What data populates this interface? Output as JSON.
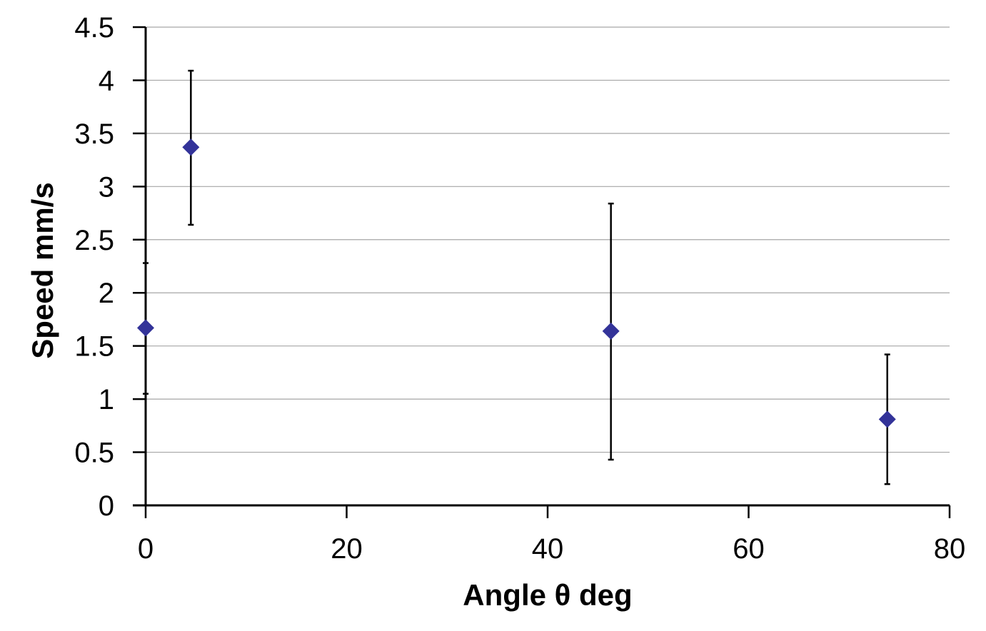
{
  "chart_data": {
    "type": "scatter",
    "title": "",
    "xlabel": "Angle θ deg",
    "ylabel": "Speed mm/s",
    "xlim": [
      0,
      80
    ],
    "ylim": [
      0,
      4.5
    ],
    "x_ticks": [
      "0",
      "20",
      "40",
      "60",
      "80"
    ],
    "x_tick_values": [
      0,
      20,
      40,
      60,
      80
    ],
    "y_ticks": [
      "0",
      "0.5",
      "1",
      "1.5",
      "2",
      "2.5",
      "3",
      "3.5",
      "4",
      "4.5"
    ],
    "y_tick_values": [
      0,
      0.5,
      1,
      1.5,
      2,
      2.5,
      3,
      3.5,
      4,
      4.5
    ],
    "grid": "horizontal",
    "legend": "none",
    "marker": "diamond",
    "marker_color": "#333399",
    "points": [
      {
        "x": 0.0,
        "y": 1.67,
        "err_low": 1.05,
        "err_high": 2.28
      },
      {
        "x": 4.5,
        "y": 3.37,
        "err_low": 2.64,
        "err_high": 4.09
      },
      {
        "x": 46.3,
        "y": 1.64,
        "err_low": 0.43,
        "err_high": 2.84
      },
      {
        "x": 73.8,
        "y": 0.81,
        "err_low": 0.2,
        "err_high": 1.42
      }
    ]
  }
}
